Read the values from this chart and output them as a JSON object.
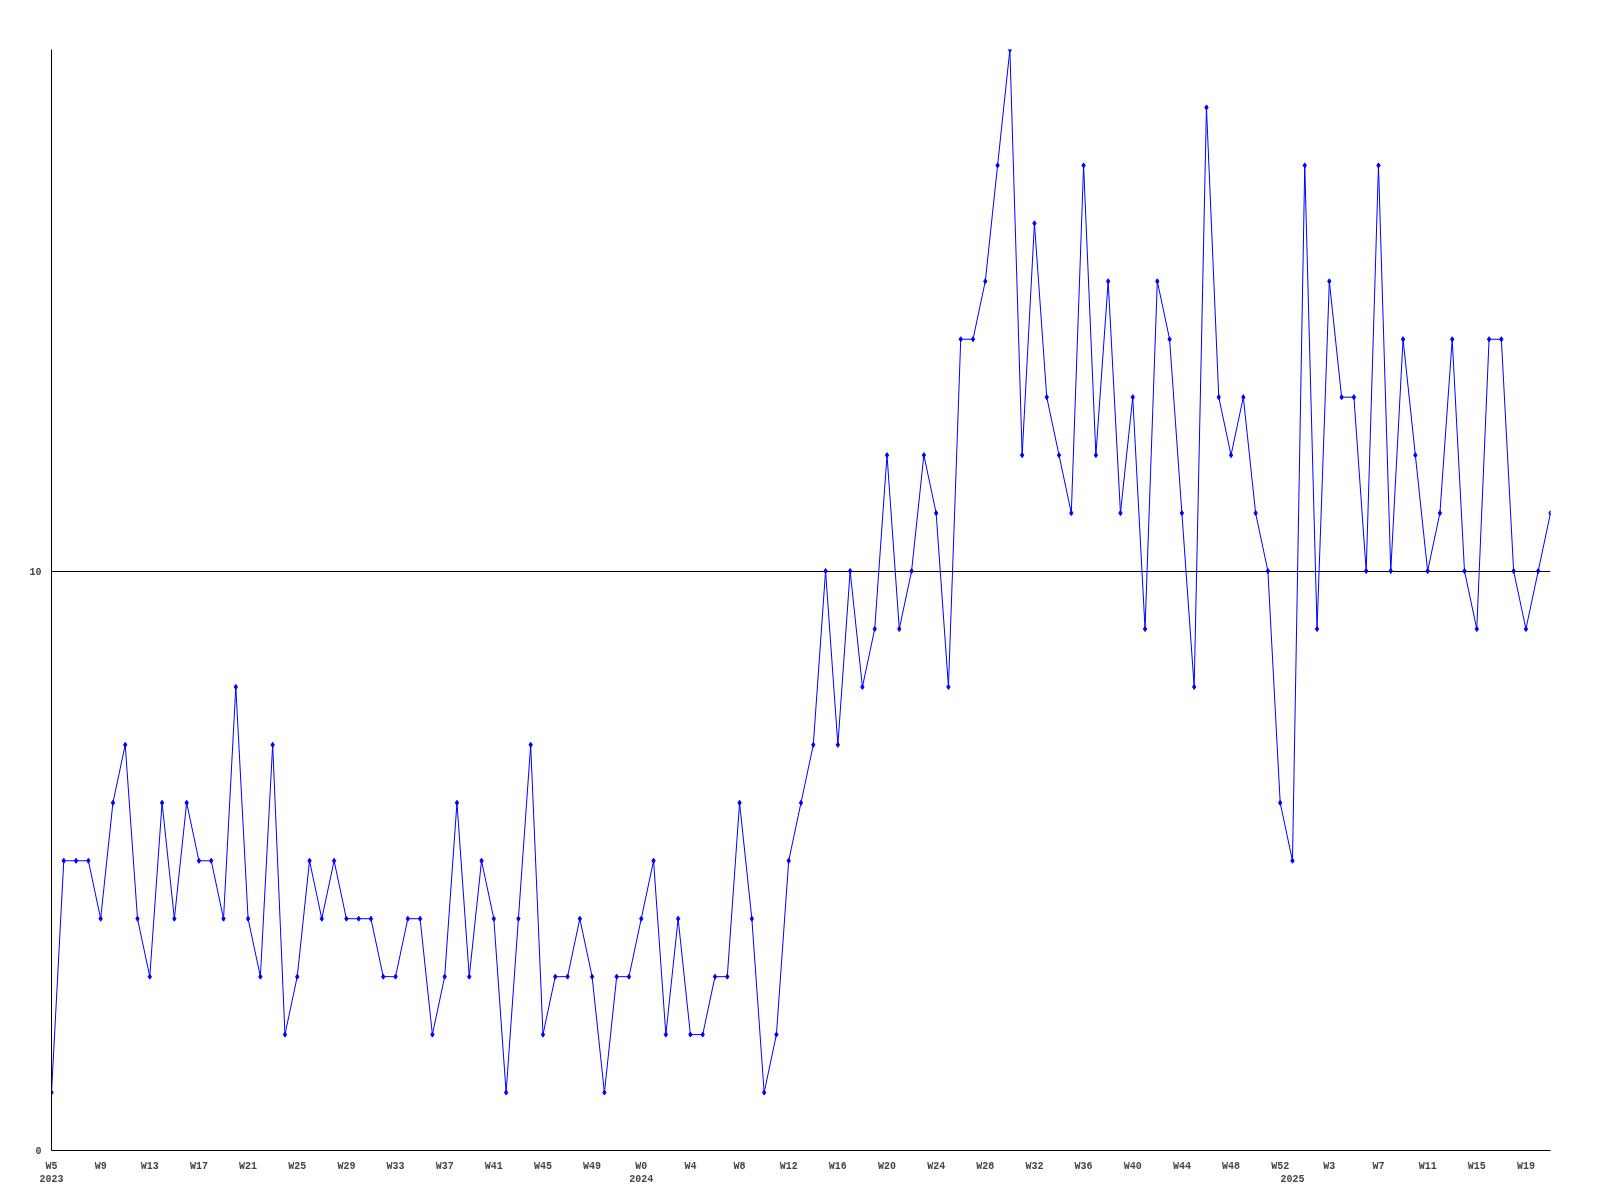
{
  "chart_data": {
    "type": "line",
    "categories": [
      "W5\n2023",
      null,
      null,
      null,
      "W9",
      null,
      null,
      null,
      "W13",
      null,
      null,
      null,
      "W17",
      null,
      null,
      null,
      "W21",
      null,
      null,
      null,
      "W25",
      null,
      null,
      null,
      "W29",
      null,
      null,
      null,
      "W33",
      null,
      null,
      null,
      "W37",
      null,
      null,
      null,
      "W41",
      null,
      null,
      null,
      "W45",
      null,
      null,
      null,
      "W49",
      null,
      null,
      null,
      "W0\n2024",
      null,
      null,
      null,
      "W4",
      null,
      null,
      null,
      "W8",
      null,
      null,
      null,
      "W12",
      null,
      null,
      null,
      "W16",
      null,
      null,
      null,
      "W20",
      null,
      null,
      null,
      "W24",
      null,
      null,
      null,
      "W28",
      null,
      null,
      null,
      "W32",
      null,
      null,
      null,
      "W36",
      null,
      null,
      null,
      "W40",
      null,
      null,
      null,
      "W44",
      null,
      null,
      null,
      "W48",
      null,
      null,
      null,
      "W52",
      "\n2025",
      null,
      null,
      "W3",
      null,
      null,
      null,
      "W7",
      null,
      null,
      null,
      "W11",
      null,
      null,
      null,
      "W15",
      null,
      null,
      null,
      "W19",
      null,
      null
    ],
    "series": [
      {
        "color": "#0000ff",
        "values": [
          1,
          5,
          5,
          5,
          4,
          6,
          7,
          4,
          3,
          6,
          4,
          6,
          5,
          5,
          4,
          8,
          4,
          3,
          7,
          2,
          3,
          5,
          4,
          5,
          4,
          4,
          4,
          3,
          3,
          4,
          4,
          2,
          3,
          6,
          3,
          5,
          4,
          1,
          4,
          7,
          2,
          3,
          3,
          4,
          3,
          1,
          3,
          3,
          4,
          5,
          2,
          4,
          2,
          2,
          3,
          3,
          6,
          4,
          1,
          2,
          5,
          6,
          7,
          10,
          7,
          10,
          8,
          9,
          12,
          9,
          10,
          12,
          11,
          8,
          14,
          14,
          15,
          17,
          19,
          12,
          16,
          13,
          12,
          11,
          17,
          12,
          15,
          11,
          13,
          9,
          15,
          14,
          11,
          8,
          18,
          13,
          12,
          13,
          11,
          10,
          6,
          5,
          17,
          9,
          15,
          13,
          13,
          10,
          17,
          10,
          14,
          12,
          10,
          11,
          14,
          10,
          9,
          14,
          14,
          10,
          9,
          10,
          11
        ]
      }
    ],
    "ylim": [
      0,
      19
    ],
    "yticks": [
      0,
      10
    ],
    "grid": "y",
    "marker": "diamond"
  }
}
